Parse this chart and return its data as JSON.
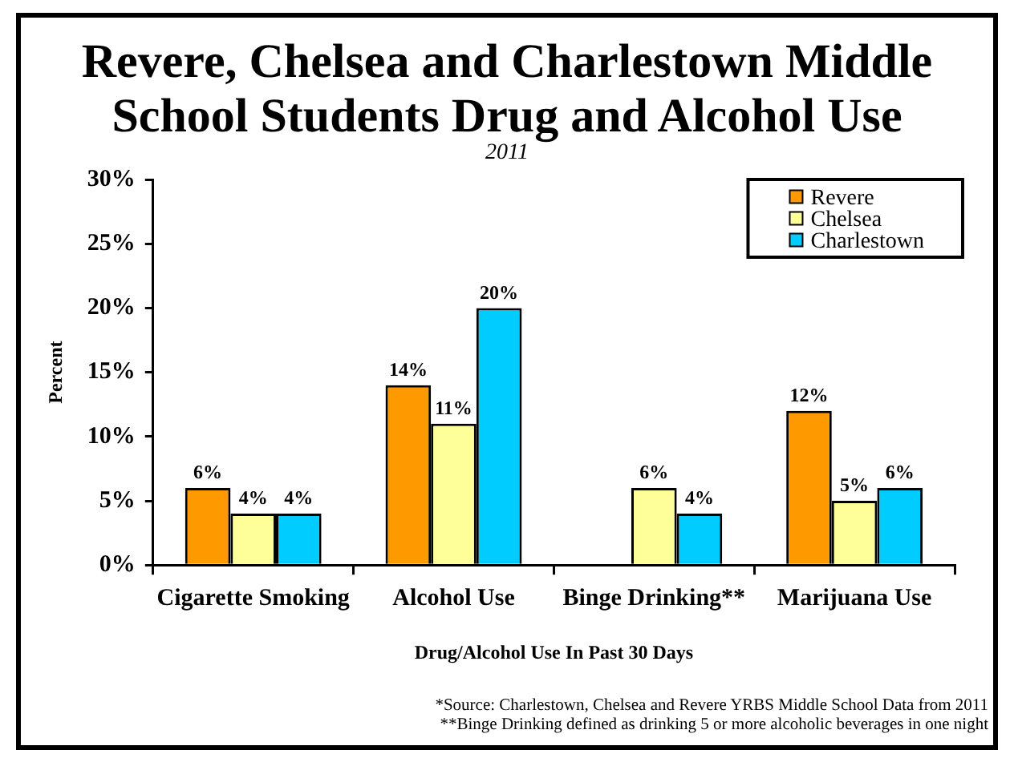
{
  "chart_data": {
    "type": "bar",
    "title": "Revere, Chelsea and Charlestown Middle School Students Drug and Alcohol Use",
    "subtitle": "2011",
    "xlabel": "Drug/Alcohol Use In Past 30 Days",
    "ylabel": "Percent",
    "categories": [
      "Cigarette Smoking",
      "Alcohol Use",
      "Binge Drinking**",
      "Marijuana Use"
    ],
    "series": [
      {
        "name": "Revere",
        "color": "#ff9900",
        "values": [
          6,
          14,
          null,
          12
        ],
        "value_labels": [
          "6%",
          "14%",
          null,
          "12%"
        ]
      },
      {
        "name": "Chelsea",
        "color": "#ffff99",
        "values": [
          4,
          11,
          6,
          5
        ],
        "value_labels": [
          "4%",
          "11%",
          "6%",
          "5%"
        ]
      },
      {
        "name": "Charlestown",
        "color": "#00ccff",
        "values": [
          4,
          20,
          4,
          6
        ],
        "value_labels": [
          "4%",
          "20%",
          "4%",
          "6%"
        ]
      }
    ],
    "ylim": [
      0,
      30
    ],
    "yticks": [
      {
        "value": 0,
        "label": "0%"
      },
      {
        "value": 5,
        "label": "5%"
      },
      {
        "value": 10,
        "label": "10%"
      },
      {
        "value": 15,
        "label": "15%"
      },
      {
        "value": 20,
        "label": "20%"
      },
      {
        "value": 25,
        "label": "25%"
      },
      {
        "value": 30,
        "label": "30%"
      }
    ],
    "grid": false,
    "legend": "top right",
    "annotations": [
      "*Source: Charlestown, Chelsea and Revere YRBS Middle School Data from 2011",
      "**Binge Drinking defined as drinking 5 or more alcoholic beverages in one night"
    ]
  }
}
